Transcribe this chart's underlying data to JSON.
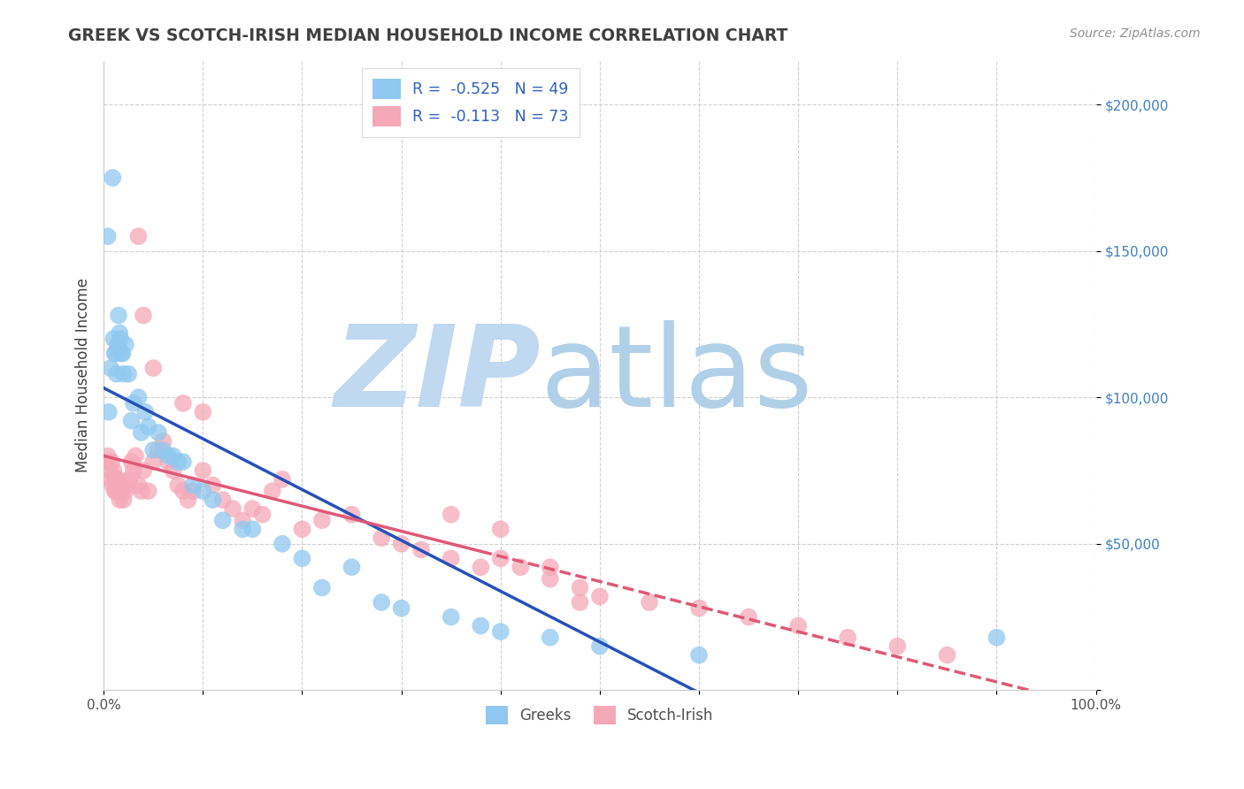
{
  "title": "GREEK VS SCOTCH-IRISH MEDIAN HOUSEHOLD INCOME CORRELATION CHART",
  "source": "Source: ZipAtlas.com",
  "ylabel": "Median Household Income",
  "xlim": [
    0,
    1.0
  ],
  "ylim": [
    0,
    215000
  ],
  "greeks_R": -0.525,
  "greeks_N": 49,
  "scotch_irish_R": -0.113,
  "scotch_irish_N": 73,
  "greek_color": "#8fc8f0",
  "scotch_irish_color": "#f5a8b8",
  "greek_line_color": "#2850b8",
  "scotch_irish_line_color": "#e05878",
  "watermark_zip_color": "#c0d8f0",
  "watermark_atlas_color": "#b0d0e8",
  "background_color": "#ffffff",
  "grid_color": "#d0d0d0",
  "title_color": "#404040",
  "source_color": "#909090",
  "axis_label_color": "#404040",
  "tick_color": "#4080c0",
  "legend_text_color": "#3060c0",
  "bottom_legend_text_color": "#505050",
  "greeks_x": [
    0.005,
    0.007,
    0.009,
    0.01,
    0.011,
    0.012,
    0.013,
    0.014,
    0.015,
    0.016,
    0.017,
    0.018,
    0.019,
    0.02,
    0.022,
    0.025,
    0.028,
    0.03,
    0.035,
    0.038,
    0.042,
    0.045,
    0.05,
    0.055,
    0.06,
    0.065,
    0.07,
    0.075,
    0.08,
    0.09,
    0.1,
    0.11,
    0.12,
    0.14,
    0.15,
    0.18,
    0.2,
    0.22,
    0.25,
    0.28,
    0.3,
    0.35,
    0.38,
    0.4,
    0.45,
    0.5,
    0.6,
    0.9,
    0.004
  ],
  "greeks_y": [
    95000,
    110000,
    175000,
    120000,
    115000,
    115000,
    108000,
    118000,
    128000,
    122000,
    120000,
    115000,
    115000,
    108000,
    118000,
    108000,
    92000,
    98000,
    100000,
    88000,
    95000,
    90000,
    82000,
    88000,
    82000,
    80000,
    80000,
    78000,
    78000,
    70000,
    68000,
    65000,
    58000,
    55000,
    55000,
    50000,
    45000,
    35000,
    42000,
    30000,
    28000,
    25000,
    22000,
    20000,
    18000,
    15000,
    12000,
    18000,
    155000
  ],
  "scotch_irish_x": [
    0.004,
    0.005,
    0.006,
    0.007,
    0.008,
    0.009,
    0.01,
    0.011,
    0.012,
    0.013,
    0.014,
    0.015,
    0.016,
    0.017,
    0.018,
    0.02,
    0.022,
    0.024,
    0.026,
    0.028,
    0.03,
    0.032,
    0.035,
    0.038,
    0.04,
    0.045,
    0.05,
    0.055,
    0.06,
    0.065,
    0.07,
    0.075,
    0.08,
    0.085,
    0.09,
    0.1,
    0.11,
    0.12,
    0.13,
    0.14,
    0.15,
    0.16,
    0.17,
    0.18,
    0.2,
    0.22,
    0.25,
    0.28,
    0.3,
    0.32,
    0.35,
    0.38,
    0.4,
    0.42,
    0.45,
    0.48,
    0.5,
    0.55,
    0.6,
    0.65,
    0.7,
    0.75,
    0.8,
    0.85,
    0.035,
    0.04,
    0.05,
    0.08,
    0.1,
    0.35,
    0.45,
    0.48,
    0.4
  ],
  "scotch_irish_y": [
    80000,
    78000,
    75000,
    72000,
    78000,
    70000,
    75000,
    68000,
    72000,
    68000,
    70000,
    72000,
    65000,
    68000,
    70000,
    65000,
    68000,
    70000,
    72000,
    78000,
    75000,
    80000,
    70000,
    68000,
    75000,
    68000,
    78000,
    82000,
    85000,
    78000,
    75000,
    70000,
    68000,
    65000,
    68000,
    75000,
    70000,
    65000,
    62000,
    58000,
    62000,
    60000,
    68000,
    72000,
    55000,
    58000,
    60000,
    52000,
    50000,
    48000,
    45000,
    42000,
    45000,
    42000,
    38000,
    35000,
    32000,
    30000,
    28000,
    25000,
    22000,
    18000,
    15000,
    12000,
    155000,
    128000,
    110000,
    98000,
    95000,
    60000,
    42000,
    30000,
    55000
  ]
}
